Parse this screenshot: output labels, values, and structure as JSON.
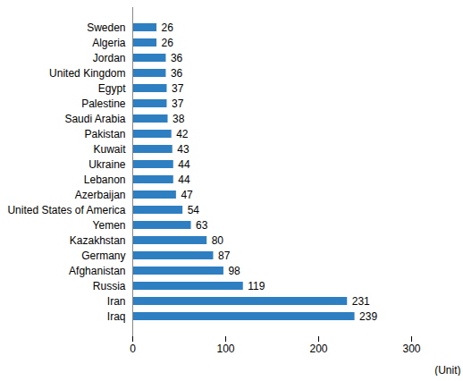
{
  "chart_data": {
    "type": "bar",
    "orientation": "horizontal",
    "categories": [
      "Sweden",
      "Algeria",
      "Jordan",
      "United Kingdom",
      "Egypt",
      "Palestine",
      "Saudi Arabia",
      "Pakistan",
      "Kuwait",
      "Ukraine",
      "Lebanon",
      "Azerbaijan",
      "United States of America",
      "Yemen",
      "Kazakhstan",
      "Germany",
      "Afghanistan",
      "Russia",
      "Iran",
      "Iraq"
    ],
    "values": [
      26,
      26,
      36,
      36,
      37,
      37,
      38,
      42,
      43,
      44,
      44,
      47,
      54,
      63,
      80,
      87,
      98,
      119,
      231,
      239
    ],
    "color": "#2e7ec2",
    "x_label": "(Unit)",
    "xlim": [
      0,
      300
    ],
    "xticks": [
      0,
      100,
      200,
      300
    ],
    "grid": false,
    "data_labels": true
  }
}
